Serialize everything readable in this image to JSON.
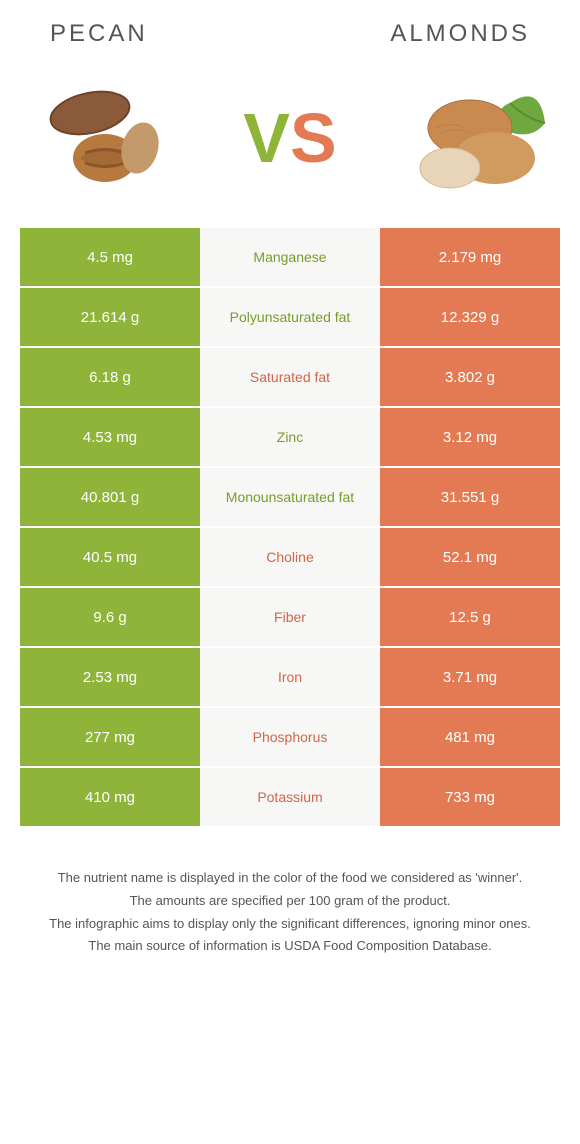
{
  "colors": {
    "left_bg": "#8fb43a",
    "right_bg": "#e37a53",
    "mid_bg": "#f7f7f5",
    "left_text": "#7a9c2e",
    "right_text": "#d0674a"
  },
  "header": {
    "left_title": "Pecan",
    "right_title": "Almonds"
  },
  "vs": {
    "v": "V",
    "s": "S"
  },
  "rows": [
    {
      "left": "4.5 mg",
      "mid": "Manganese",
      "right": "2.179 mg",
      "winner": "left"
    },
    {
      "left": "21.614 g",
      "mid": "Polyunsaturated fat",
      "right": "12.329 g",
      "winner": "left"
    },
    {
      "left": "6.18 g",
      "mid": "Saturated fat",
      "right": "3.802 g",
      "winner": "right"
    },
    {
      "left": "4.53 mg",
      "mid": "Zinc",
      "right": "3.12 mg",
      "winner": "left"
    },
    {
      "left": "40.801 g",
      "mid": "Monounsaturated fat",
      "right": "31.551 g",
      "winner": "left"
    },
    {
      "left": "40.5 mg",
      "mid": "Choline",
      "right": "52.1 mg",
      "winner": "right"
    },
    {
      "left": "9.6 g",
      "mid": "Fiber",
      "right": "12.5 g",
      "winner": "right"
    },
    {
      "left": "2.53 mg",
      "mid": "Iron",
      "right": "3.71 mg",
      "winner": "right"
    },
    {
      "left": "277 mg",
      "mid": "Phosphorus",
      "right": "481 mg",
      "winner": "right"
    },
    {
      "left": "410 mg",
      "mid": "Potassium",
      "right": "733 mg",
      "winner": "right"
    }
  ],
  "footer": {
    "line1": "The nutrient name is displayed in the color of the food we considered as 'winner'.",
    "line2": "The amounts are specified per 100 gram of the product.",
    "line3": "The infographic aims to display only the significant differences, ignoring minor ones.",
    "line4": "The main source of information is USDA Food Composition Database."
  }
}
